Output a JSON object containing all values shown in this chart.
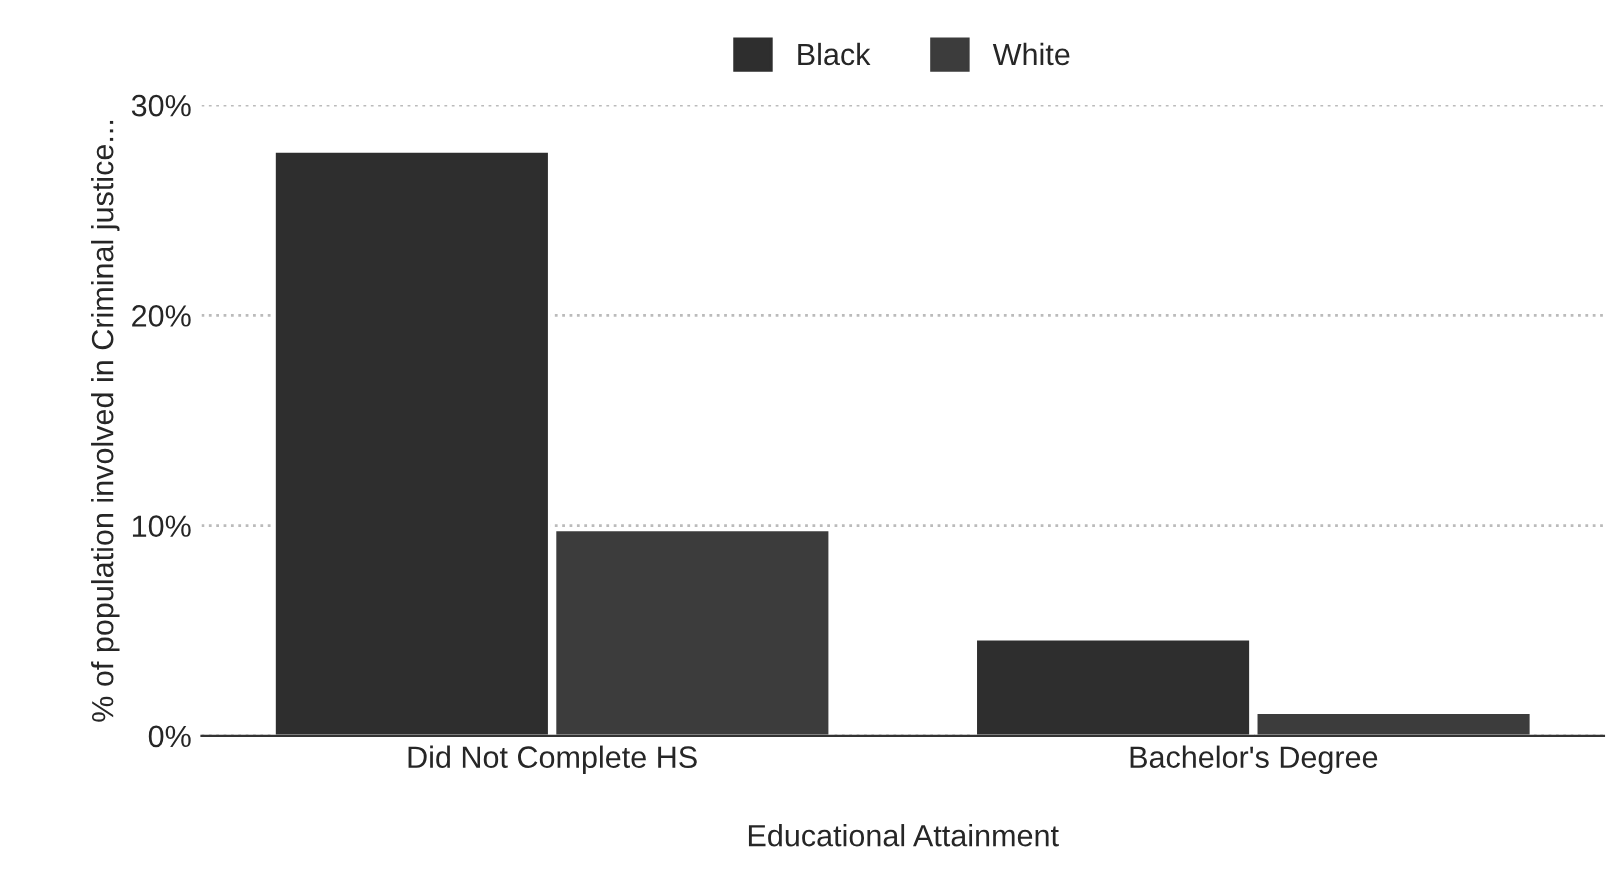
{
  "chart_data": {
    "type": "bar",
    "xlabel": "Educational Attainment",
    "ylabel": "% of population involved in Criminal justice...",
    "categories": [
      "Did Not Complete HS",
      "Bachelor's Degree"
    ],
    "series": [
      {
        "name": "Black",
        "color": "#2e2e2e",
        "values": [
          27.8,
          4.6
        ]
      },
      {
        "name": "White",
        "color": "#3c3c3c",
        "values": [
          9.8,
          1.1
        ]
      }
    ],
    "ylim": [
      0,
      30
    ],
    "yticks": [
      {
        "value": 0,
        "label": "0%"
      },
      {
        "value": 10,
        "label": "10%"
      },
      {
        "value": 20,
        "label": "20%"
      },
      {
        "value": 30,
        "label": "30%"
      }
    ],
    "grid": "y",
    "legend": "top"
  }
}
